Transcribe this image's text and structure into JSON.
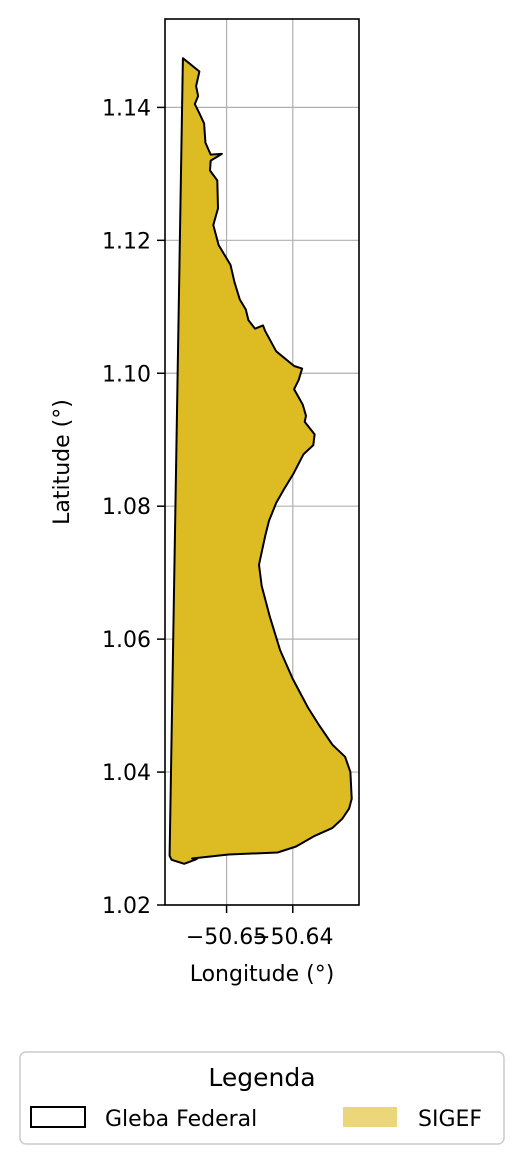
{
  "chart_data": {
    "type": "map",
    "xlabel": "Longitude (°)",
    "ylabel": "Latitude (°)",
    "xlim": [
      -50.6593,
      -50.63
    ],
    "ylim": [
      1.02,
      1.1533
    ],
    "xticks": [
      {
        "value": -50.65,
        "label": "−50.65"
      },
      {
        "value": -50.64,
        "label": "−50.64"
      }
    ],
    "yticks": [
      {
        "value": 1.02,
        "label": "1.02"
      },
      {
        "value": 1.04,
        "label": "1.04"
      },
      {
        "value": 1.06,
        "label": "1.06"
      },
      {
        "value": 1.08,
        "label": "1.08"
      },
      {
        "value": 1.1,
        "label": "1.10"
      },
      {
        "value": 1.12,
        "label": "1.12"
      },
      {
        "value": 1.14,
        "label": "1.14"
      }
    ],
    "grid": true,
    "polygon": {
      "fill": "#ddbb22",
      "stroke": "#000000",
      "coordinates": [
        [
          -50.6566,
          1.1474
        ],
        [
          -50.6541,
          1.1454
        ],
        [
          -50.6546,
          1.1432
        ],
        [
          -50.6543,
          1.1417
        ],
        [
          -50.6548,
          1.1405
        ],
        [
          -50.6542,
          1.1393
        ],
        [
          -50.6534,
          1.1376
        ],
        [
          -50.6532,
          1.1347
        ],
        [
          -50.6524,
          1.1329
        ],
        [
          -50.6507,
          1.133
        ],
        [
          -50.6524,
          1.132
        ],
        [
          -50.6525,
          1.1305
        ],
        [
          -50.6514,
          1.129
        ],
        [
          -50.6513,
          1.1248
        ],
        [
          -50.652,
          1.1223
        ],
        [
          -50.6512,
          1.1193
        ],
        [
          -50.6494,
          1.1163
        ],
        [
          -50.6488,
          1.1137
        ],
        [
          -50.648,
          1.1111
        ],
        [
          -50.6471,
          1.1096
        ],
        [
          -50.6467,
          1.108
        ],
        [
          -50.6457,
          1.1067
        ],
        [
          -50.6445,
          1.1072
        ],
        [
          -50.6442,
          1.1064
        ],
        [
          -50.6425,
          1.1033
        ],
        [
          -50.6398,
          1.1011
        ],
        [
          -50.6386,
          1.1007
        ],
        [
          -50.6391,
          1.099
        ],
        [
          -50.6398,
          1.0976
        ],
        [
          -50.6385,
          1.0953
        ],
        [
          -50.638,
          1.0936
        ],
        [
          -50.6382,
          1.0927
        ],
        [
          -50.6367,
          1.0908
        ],
        [
          -50.6369,
          1.0892
        ],
        [
          -50.6384,
          1.0878
        ],
        [
          -50.6399,
          1.0849
        ],
        [
          -50.6413,
          1.0826
        ],
        [
          -50.6425,
          1.0805
        ],
        [
          -50.6436,
          1.0778
        ],
        [
          -50.6442,
          1.0754
        ],
        [
          -50.6451,
          1.0712
        ],
        [
          -50.6447,
          1.068
        ],
        [
          -50.6435,
          1.0635
        ],
        [
          -50.6419,
          1.0583
        ],
        [
          -50.64,
          1.054
        ],
        [
          -50.6377,
          1.0497
        ],
        [
          -50.636,
          1.047
        ],
        [
          -50.634,
          1.0441
        ],
        [
          -50.6321,
          1.0423
        ],
        [
          -50.6313,
          1.04
        ],
        [
          -50.6311,
          1.036
        ],
        [
          -50.6315,
          1.0345
        ],
        [
          -50.6325,
          1.033
        ],
        [
          -50.634,
          1.0316
        ],
        [
          -50.6367,
          1.0304
        ],
        [
          -50.6395,
          1.0288
        ],
        [
          -50.6423,
          1.0279
        ],
        [
          -50.6497,
          1.0276
        ],
        [
          -50.6552,
          1.027
        ],
        [
          -50.6545,
          1.0269
        ],
        [
          -50.6564,
          1.0262
        ],
        [
          -50.6583,
          1.0268
        ],
        [
          -50.6586,
          1.0274
        ]
      ]
    },
    "legend": {
      "title": "Legenda",
      "placement": "bottom",
      "entries": [
        {
          "label": "Gleba Federal",
          "style": "outline",
          "color": "#000000"
        },
        {
          "label": "SIGEF",
          "style": "fill",
          "color": "#ddbb22",
          "opacity": 0.6
        }
      ]
    }
  }
}
